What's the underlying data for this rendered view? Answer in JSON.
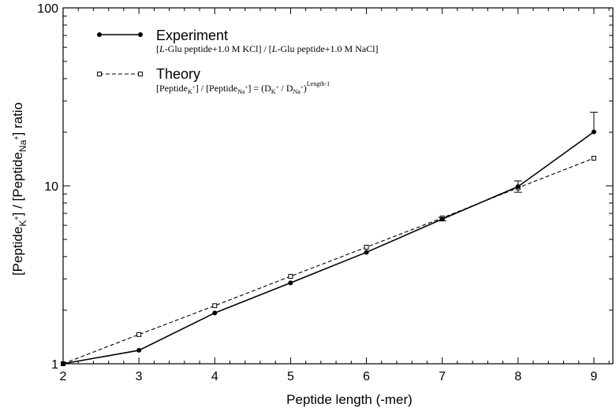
{
  "chart_data": {
    "type": "line",
    "xlabel": "Peptide length (-mer)",
    "ylabel": {
      "prefix": "[Peptide",
      "sub1": "K",
      "sup1": "+",
      "middle": "] / [Peptide",
      "sub2": "Na",
      "sup2": "+",
      "suffix": "] ratio"
    },
    "x_ticks": [
      "2",
      "3",
      "4",
      "5",
      "6",
      "7",
      "8",
      "9"
    ],
    "y_ticks": [
      "1",
      "10",
      "100"
    ],
    "xlim": [
      2,
      9.25
    ],
    "ylim": [
      1,
      100
    ],
    "y_scale": "log",
    "grid": false,
    "legend_position": "top-left",
    "series": [
      {
        "name": "Experiment",
        "style": "solid",
        "marker": "filled-circle",
        "color": "#000000",
        "x": [
          2,
          3,
          4,
          5,
          6,
          7,
          8,
          9
        ],
        "y": [
          1.0,
          1.19,
          1.93,
          2.85,
          4.23,
          6.5,
          9.9,
          20.1
        ],
        "error_upper": [
          0,
          0,
          0,
          0,
          0,
          0.15,
          0.75,
          5.8
        ],
        "error_lower": [
          0,
          0,
          0,
          0,
          0,
          0.15,
          0.7,
          0
        ]
      },
      {
        "name": "Theory",
        "style": "dashed",
        "marker": "open-square",
        "color": "#000000",
        "x": [
          2,
          3,
          4,
          5,
          6,
          7,
          8,
          9
        ],
        "y": [
          1.0,
          1.46,
          2.12,
          3.1,
          4.52,
          6.6,
          9.75,
          14.3
        ]
      }
    ],
    "legend": {
      "experiment_caption": {
        "p1": "[",
        "i1": "L",
        "p2": "-Glu peptide+1.0 M KCl] / [",
        "i2": "L",
        "p3": "-Glu peptide+1.0 M NaCl]"
      },
      "theory_caption": {
        "t1": "[Peptide",
        "s1": "K",
        "u1": "+",
        "t2": "] / [Peptide",
        "s2": "Na",
        "u2": "+",
        "t3": "] = (D",
        "s3": "K",
        "u3": "+",
        "t4": " / D",
        "s4": "Na",
        "u4": "+",
        "t5": ")",
        "exponent": "Length-1"
      }
    }
  }
}
